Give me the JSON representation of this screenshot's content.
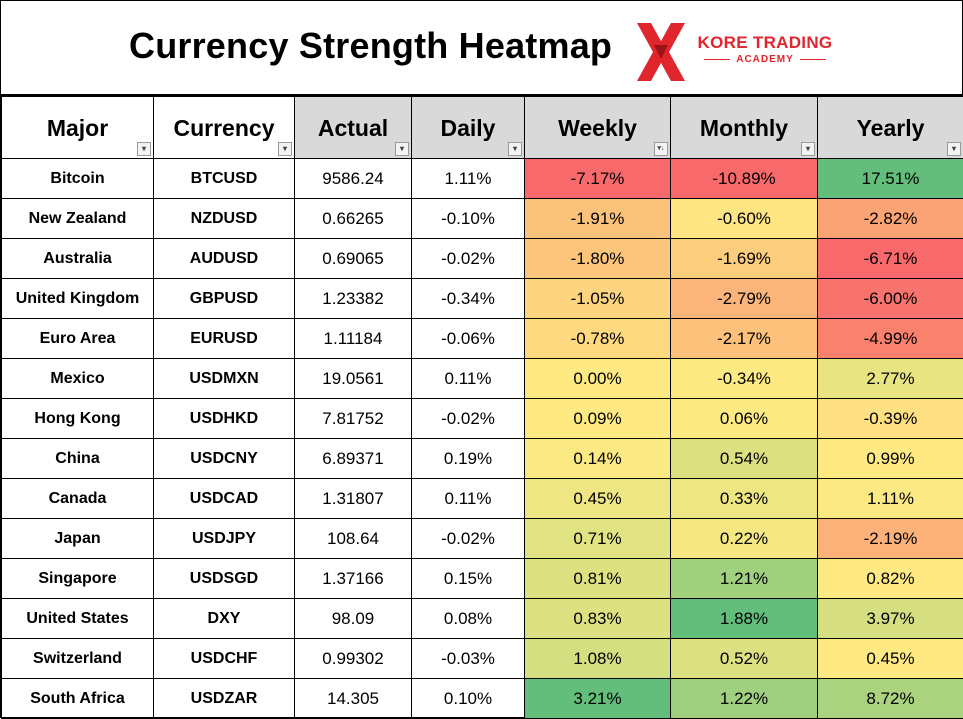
{
  "header": {
    "title": "Currency Strength Heatmap",
    "logo": {
      "line1": "KORE TRADING",
      "line2": "ACADEMY",
      "brand_color": "#e1252d"
    }
  },
  "columns": [
    {
      "label": "Major",
      "filter_icon": "dropdown-arrow-icon"
    },
    {
      "label": "Currency",
      "filter_icon": "dropdown-arrow-icon"
    },
    {
      "label": "Actual",
      "filter_icon": "dropdown-arrow-icon"
    },
    {
      "label": "Daily",
      "filter_icon": "dropdown-arrow-icon"
    },
    {
      "label": "Weekly",
      "filter_icon": "sort-descending-icon"
    },
    {
      "label": "Monthly",
      "filter_icon": "dropdown-arrow-icon"
    },
    {
      "label": "Yearly",
      "filter_icon": "dropdown-arrow-icon"
    }
  ],
  "rows": [
    {
      "major": "Bitcoin",
      "currency": "BTCUSD",
      "actual": "9586.24",
      "daily": "1.11%",
      "weekly": "-7.17%",
      "monthly": "-10.89%",
      "yearly": "17.51%",
      "weekly_color": "#f8696b",
      "monthly_color": "#f8696b",
      "yearly_color": "#63be7b"
    },
    {
      "major": "New Zealand",
      "currency": "NZDUSD",
      "actual": "0.66265",
      "daily": "-0.10%",
      "weekly": "-1.91%",
      "monthly": "-0.60%",
      "yearly": "-2.82%",
      "weekly_color": "#fbc27c",
      "monthly_color": "#fee582",
      "yearly_color": "#faa374"
    },
    {
      "major": "Australia",
      "currency": "AUDUSD",
      "actual": "0.69065",
      "daily": "-0.02%",
      "weekly": "-1.80%",
      "monthly": "-1.69%",
      "yearly": "-6.71%",
      "weekly_color": "#fcc57c",
      "monthly_color": "#fdcd7e",
      "yearly_color": "#f8696b"
    },
    {
      "major": "United Kingdom",
      "currency": "GBPUSD",
      "actual": "1.23382",
      "daily": "-0.34%",
      "weekly": "-1.05%",
      "monthly": "-2.79%",
      "yearly": "-6.00%",
      "weekly_color": "#fdd47f",
      "monthly_color": "#fbb479",
      "yearly_color": "#f8736d"
    },
    {
      "major": "Euro Area",
      "currency": "EURUSD",
      "actual": "1.11184",
      "daily": "-0.06%",
      "weekly": "-0.78%",
      "monthly": "-2.17%",
      "yearly": "-4.99%",
      "weekly_color": "#fed980",
      "monthly_color": "#fcc27c",
      "yearly_color": "#f9826f"
    },
    {
      "major": "Mexico",
      "currency": "USDMXN",
      "actual": "19.0561",
      "daily": "0.11%",
      "weekly": "0.00%",
      "monthly": "-0.34%",
      "yearly": "2.77%",
      "weekly_color": "#fee983",
      "monthly_color": "#feea83",
      "yearly_color": "#e8e482"
    },
    {
      "major": "Hong Kong",
      "currency": "USDHKD",
      "actual": "7.81752",
      "daily": "-0.02%",
      "weekly": "0.09%",
      "monthly": "0.06%",
      "yearly": "-0.39%",
      "weekly_color": "#fee983",
      "monthly_color": "#fdea83",
      "yearly_color": "#fee082"
    },
    {
      "major": "China",
      "currency": "USDCNY",
      "actual": "6.89371",
      "daily": "0.19%",
      "weekly": "0.14%",
      "monthly": "0.54%",
      "yearly": "0.99%",
      "weekly_color": "#fbe983",
      "monthly_color": "#dce081",
      "yearly_color": "#fee983"
    },
    {
      "major": "Canada",
      "currency": "USDCAD",
      "actual": "1.31807",
      "daily": "0.11%",
      "weekly": "0.45%",
      "monthly": "0.33%",
      "yearly": "1.11%",
      "weekly_color": "#ede683",
      "monthly_color": "#ede683",
      "yearly_color": "#fde983"
    },
    {
      "major": "Japan",
      "currency": "USDJPY",
      "actual": "108.64",
      "daily": "-0.02%",
      "weekly": "0.71%",
      "monthly": "0.22%",
      "yearly": "-2.19%",
      "weekly_color": "#e2e382",
      "monthly_color": "#f5e883",
      "yearly_color": "#fbb178"
    },
    {
      "major": "Singapore",
      "currency": "USDSGD",
      "actual": "1.37166",
      "daily": "0.15%",
      "weekly": "0.81%",
      "monthly": "1.21%",
      "yearly": "0.82%",
      "weekly_color": "#dde182",
      "monthly_color": "#a1d07f",
      "yearly_color": "#fee983"
    },
    {
      "major": "United States",
      "currency": "DXY",
      "actual": "98.09",
      "daily": "0.08%",
      "weekly": "0.83%",
      "monthly": "1.88%",
      "yearly": "3.97%",
      "weekly_color": "#dde182",
      "monthly_color": "#63be7b",
      "yearly_color": "#d5df81"
    },
    {
      "major": "Switzerland",
      "currency": "USDCHF",
      "actual": "0.99302",
      "daily": "-0.03%",
      "weekly": "1.08%",
      "monthly": "0.52%",
      "yearly": "0.45%",
      "weekly_color": "#d4df81",
      "monthly_color": "#dde182",
      "yearly_color": "#fee983"
    },
    {
      "major": "South Africa",
      "currency": "USDZAR",
      "actual": "14.305",
      "daily": "0.10%",
      "weekly": "3.21%",
      "monthly": "1.22%",
      "yearly": "8.72%",
      "weekly_color": "#63be7b",
      "monthly_color": "#a0cf7f",
      "yearly_color": "#abd27f"
    }
  ]
}
